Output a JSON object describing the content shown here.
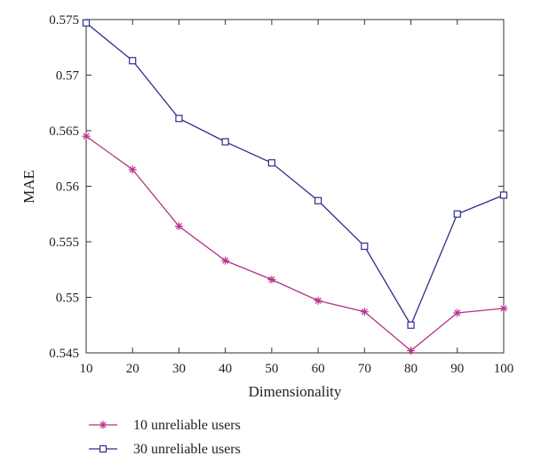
{
  "chart_data": {
    "type": "line",
    "title": "",
    "xlabel": "Dimensionality",
    "ylabel": "MAE",
    "x": [
      10,
      20,
      30,
      40,
      50,
      60,
      70,
      80,
      90,
      100
    ],
    "xlim": [
      10,
      100
    ],
    "ylim": [
      0.545,
      0.575
    ],
    "xticks": [
      10,
      20,
      30,
      40,
      50,
      60,
      70,
      80,
      90,
      100
    ],
    "yticks": [
      0.545,
      0.55,
      0.555,
      0.56,
      0.565,
      0.57,
      0.575
    ],
    "xtick_labels": [
      "10",
      "20",
      "30",
      "40",
      "50",
      "60",
      "70",
      "80",
      "90",
      "100"
    ],
    "ytick_labels": [
      "0.545",
      "0.55",
      "0.555",
      "0.56",
      "0.565",
      "0.57",
      "0.575"
    ],
    "grid": false,
    "legend_position": "bottom-left, below plot",
    "series": [
      {
        "name": "10 unreliable users",
        "color": "#b5338a",
        "marker": "asterisk",
        "values": [
          0.5645,
          0.5615,
          0.5564,
          0.5533,
          0.5516,
          0.5497,
          0.5487,
          0.5452,
          0.5486,
          0.549
        ]
      },
      {
        "name": "30 unreliable users",
        "color": "#2e2e8e",
        "marker": "square",
        "values": [
          0.5747,
          0.5713,
          0.5661,
          0.564,
          0.5621,
          0.5587,
          0.5546,
          0.5475,
          0.5575,
          0.5592
        ]
      }
    ]
  }
}
